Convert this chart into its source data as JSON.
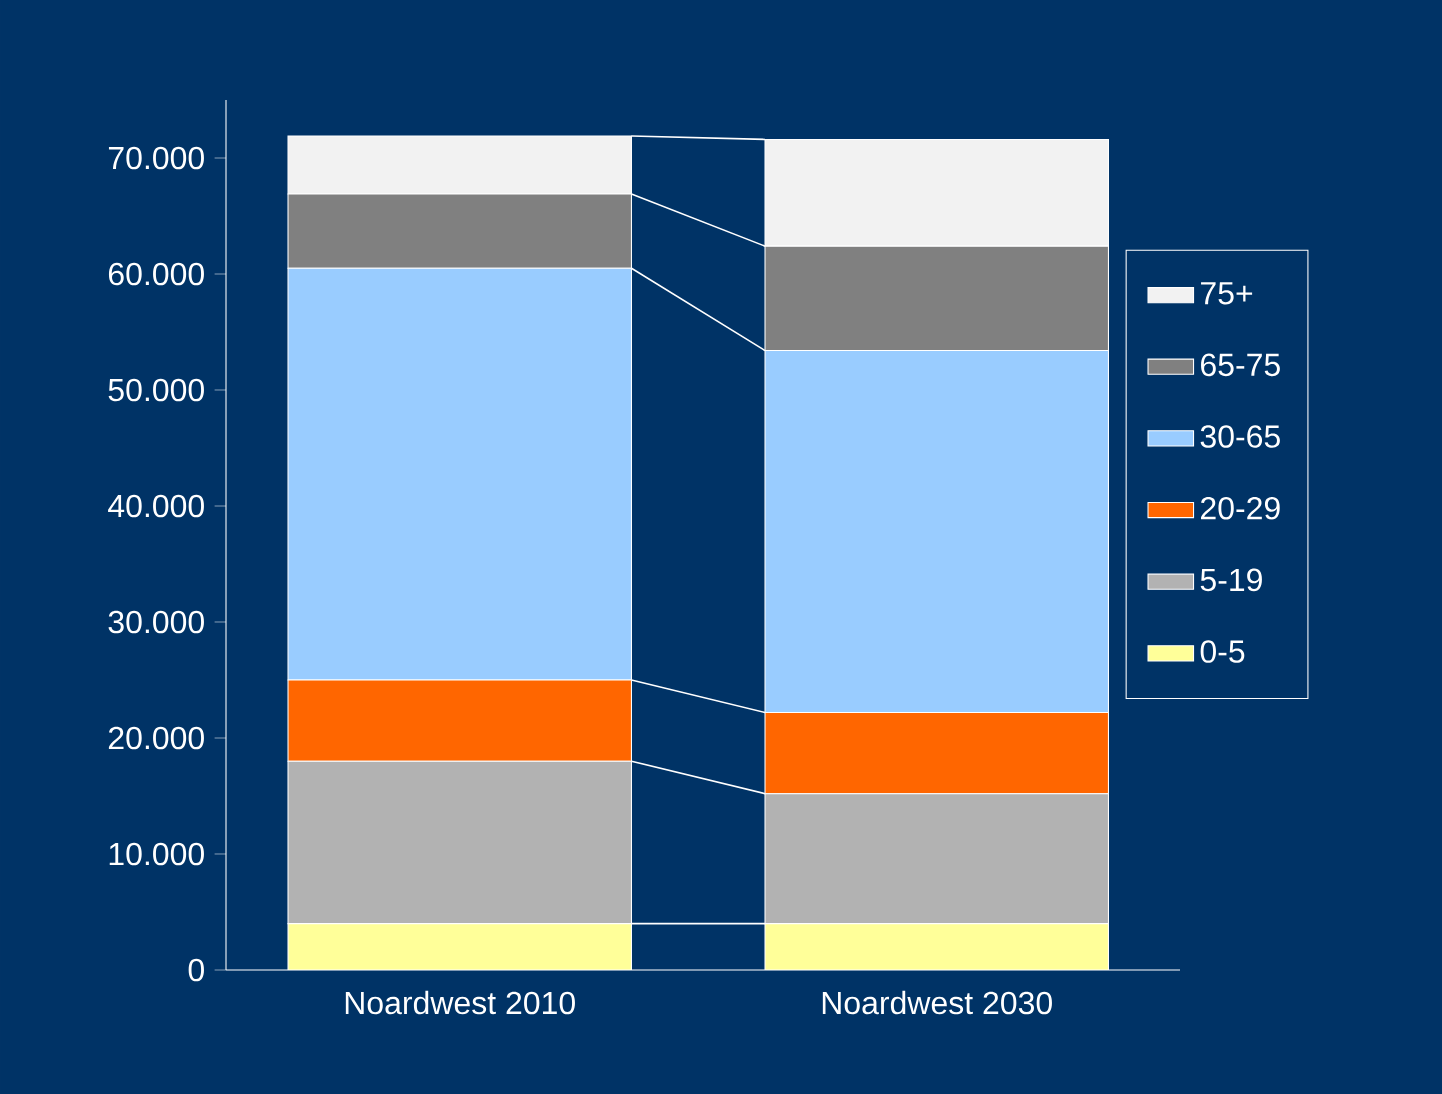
{
  "chart_data": {
    "type": "bar",
    "stacked": true,
    "categories": [
      "Noardwest 2010",
      "Noardwest 2030"
    ],
    "series": [
      {
        "name": "0-5",
        "color": "#ffff99",
        "values": [
          4000,
          4000
        ]
      },
      {
        "name": "5-19",
        "color": "#b2b2b2",
        "values": [
          14000,
          11200
        ]
      },
      {
        "name": "20-29",
        "color": "#ff6600",
        "values": [
          7000,
          7000
        ]
      },
      {
        "name": "30-65",
        "color": "#99ccff",
        "values": [
          35500,
          31200
        ]
      },
      {
        "name": "65-75",
        "color": "#808080",
        "values": [
          6400,
          9000
        ]
      },
      {
        "name": "75+",
        "color": "#f2f2f2",
        "values": [
          5000,
          9200
        ]
      }
    ],
    "ylim": [
      0,
      75000
    ],
    "yticks": [
      0,
      {
        "value": 10000,
        "label": "10.000"
      },
      {
        "value": 20000,
        "label": "20.000"
      },
      {
        "value": 30000,
        "label": "30.000"
      },
      {
        "value": 40000,
        "label": "40.000"
      },
      {
        "value": 50000,
        "label": "50.000"
      },
      {
        "value": 60000,
        "label": "60.000"
      },
      {
        "value": 70000,
        "label": "70.000"
      }
    ],
    "legend": "right"
  }
}
